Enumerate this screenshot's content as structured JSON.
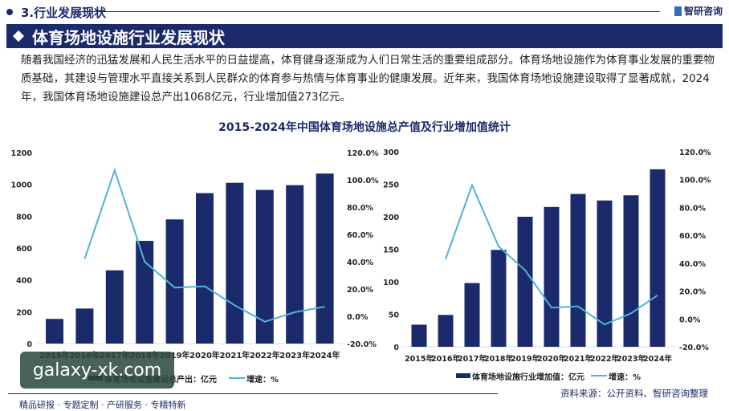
{
  "header": {
    "section": "3.行业发展现状",
    "logo": "智研咨询",
    "banner": "体育场地设施行业发展现状"
  },
  "paragraph": "随着我国经济的迅猛发展和人民生活水平的日益提高，体育健身逐渐成为人们日常生活的重要组成部分。体育场地设施作为体育事业发展的重要物质基础，其建设与管理水平直接关系到人民群众的体育参与热情与体育事业的健康发展。近年来，我国体育场地设施建设取得了显著成就，2024年，我国体育场地设施建设总产出1068亿元，行业增加值273亿元。",
  "chart_title": "2015-2024年中国体育场地设施总产值及行业增加值统计",
  "colors": {
    "bar": "#1b2a6b",
    "line": "#4fb3d9"
  },
  "chart_data": [
    {
      "type": "bar+line",
      "categories": [
        "2015年",
        "2016年",
        "2017年",
        "2018年",
        "2019年",
        "2020年",
        "2021年",
        "2022年",
        "2023年",
        "2024年"
      ],
      "series": [
        {
          "name": "体育场地设施建设总产出：亿元",
          "kind": "bar",
          "values": [
            155,
            220,
            460,
            645,
            780,
            945,
            1010,
            965,
            995,
            1068
          ]
        },
        {
          "name": "增速：%",
          "kind": "line",
          "axis": "right",
          "values": [
            null,
            42,
            107,
            40,
            21,
            22,
            8,
            -4,
            3,
            7
          ]
        }
      ],
      "ylim": [
        0,
        1200
      ],
      "yticks": [
        0,
        200,
        400,
        600,
        800,
        1000,
        1200
      ],
      "y2lim": [
        -20,
        120
      ],
      "y2ticks": [
        "-20.0%",
        "0.0%",
        "20.0%",
        "40.0%",
        "60.0%",
        "80.0%",
        "100.0%",
        "120.0%"
      ],
      "legend": "bottom"
    },
    {
      "type": "bar+line",
      "categories": [
        "2015年",
        "2016年",
        "2017年",
        "2018年",
        "2019年",
        "2020年",
        "2021年",
        "2022年",
        "2023年",
        "2024年"
      ],
      "series": [
        {
          "name": "体育场地设施行业增加值：亿元",
          "kind": "bar",
          "values": [
            34,
            49,
            98,
            149,
            200,
            215,
            235,
            225,
            233,
            273
          ]
        },
        {
          "name": "增速：%",
          "kind": "line",
          "axis": "right",
          "values": [
            null,
            43,
            96,
            52,
            35,
            8,
            9,
            -4,
            4,
            17
          ]
        }
      ],
      "ylim": [
        0,
        300
      ],
      "yticks": [
        0,
        50,
        100,
        150,
        200,
        250,
        300
      ],
      "y2lim": [
        -20,
        120
      ],
      "y2ticks": [
        "-20.0%",
        "0.0%",
        "20.0%",
        "40.0%",
        "60.0%",
        "80.0%",
        "100.0%",
        "120.0%"
      ],
      "legend": "bottom"
    }
  ],
  "footer": {
    "slogan": "精品研报 · 专题定制 · 产研服务 · 专精特新",
    "source": "资料来源：公开资料、智研咨询整理",
    "watermark": "galaxy-xk.com"
  }
}
